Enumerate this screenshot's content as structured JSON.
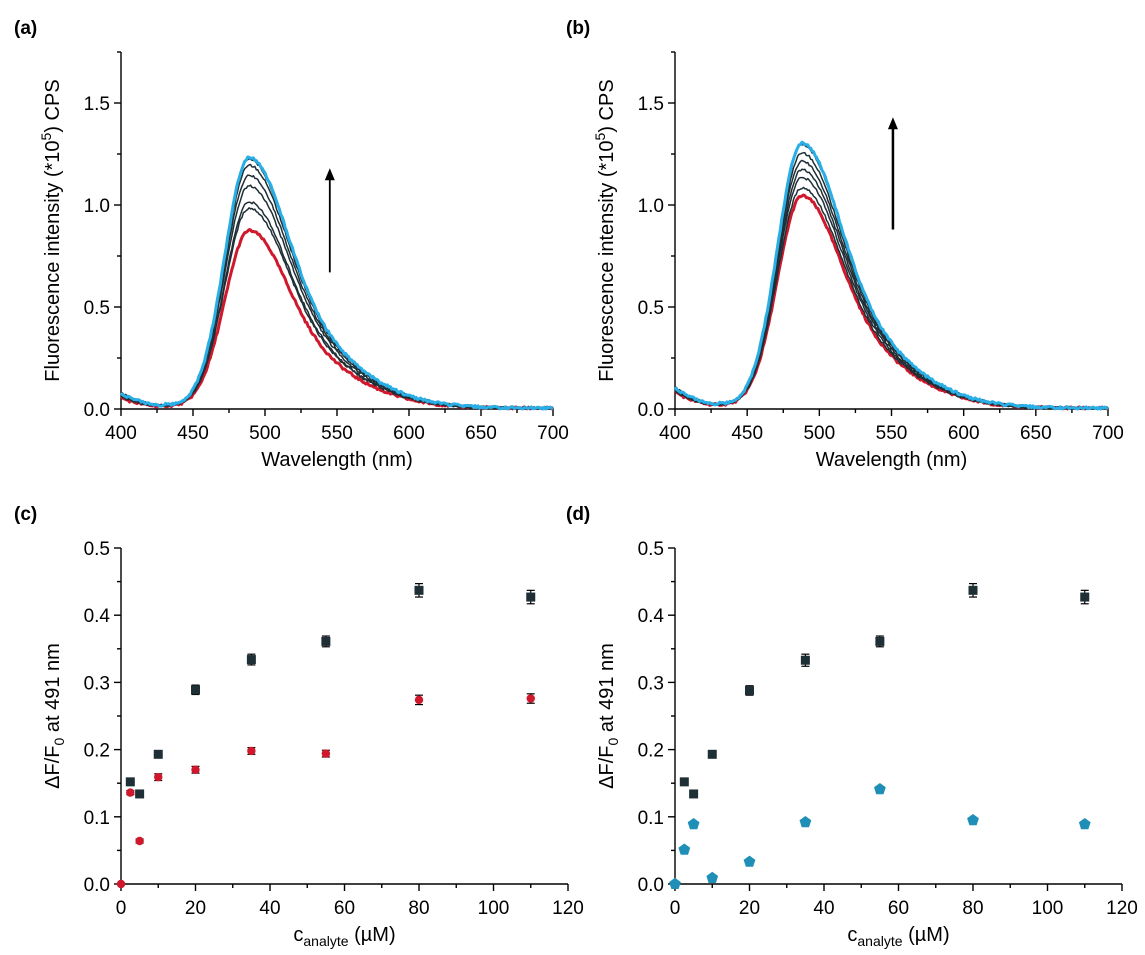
{
  "colors": {
    "red": "#d0182c",
    "blue": "#29aee6",
    "dark": "#1f2f36",
    "pentagon": "#1f8fb8"
  },
  "chart_data": [
    {
      "panel": "(a)",
      "type": "line",
      "xlabel": "Wavelength (nm)",
      "ylabel": {
        "pre": "Fluorescence intensity (*10",
        "sup": "5",
        "post": ") CPS"
      },
      "xlim": [
        400,
        700
      ],
      "ylim": [
        0,
        1.75
      ],
      "xticks": [
        400,
        450,
        500,
        550,
        600,
        650,
        700
      ],
      "yticks": [
        0.0,
        0.5,
        1.0,
        1.5
      ],
      "ytick_labels": [
        "0.0",
        "0.5",
        "1.0",
        "1.5"
      ],
      "peak_nm": 489,
      "baseline_start": 0.07,
      "arrow": {
        "x": 545,
        "y_from": 0.67,
        "y_to": 1.18
      },
      "series": [
        {
          "color": "red",
          "peak": 0.87,
          "width": 3
        },
        {
          "color": "dark",
          "peak": 0.98,
          "width": 1.5
        },
        {
          "color": "dark",
          "peak": 1.01,
          "width": 1.5
        },
        {
          "color": "dark",
          "peak": 1.09,
          "width": 1.5
        },
        {
          "color": "dark",
          "peak": 1.14,
          "width": 1.5
        },
        {
          "color": "dark",
          "peak": 1.19,
          "width": 1.5
        },
        {
          "color": "dark",
          "peak": 1.22,
          "width": 1.5
        },
        {
          "color": "blue",
          "peak": 1.23,
          "width": 3
        }
      ]
    },
    {
      "panel": "(b)",
      "type": "line",
      "xlabel": "Wavelength (nm)",
      "ylabel": {
        "pre": "Fluorescence intensity (*10",
        "sup": "5",
        "post": ") CPS"
      },
      "xlim": [
        400,
        700
      ],
      "ylim": [
        0,
        1.75
      ],
      "xticks": [
        400,
        450,
        500,
        550,
        600,
        650,
        700
      ],
      "yticks": [
        0.0,
        0.5,
        1.0,
        1.5
      ],
      "ytick_labels": [
        "0.0",
        "0.5",
        "1.0",
        "1.5"
      ],
      "peak_nm": 488,
      "baseline_start": 0.09,
      "arrow": {
        "x": 551,
        "y_from": 0.88,
        "y_to": 1.43
      },
      "series": [
        {
          "color": "red",
          "peak": 1.04,
          "width": 3
        },
        {
          "color": "dark",
          "peak": 1.08,
          "width": 1.5
        },
        {
          "color": "dark",
          "peak": 1.13,
          "width": 1.5
        },
        {
          "color": "dark",
          "peak": 1.17,
          "width": 1.5
        },
        {
          "color": "dark",
          "peak": 1.21,
          "width": 1.5
        },
        {
          "color": "dark",
          "peak": 1.25,
          "width": 1.5
        },
        {
          "color": "dark",
          "peak": 1.29,
          "width": 1.5
        },
        {
          "color": "blue",
          "peak": 1.3,
          "width": 3
        }
      ]
    },
    {
      "panel": "(c)",
      "type": "scatter",
      "xlabel": {
        "pre": "c",
        "sub": "analyte",
        "post": " (µM)"
      },
      "ylabel": {
        "pre": "ΔF/F",
        "sub": "0",
        "post": " at 491 nm"
      },
      "xlim": [
        0,
        120
      ],
      "ylim": [
        0,
        0.5
      ],
      "xticks": [
        0,
        20,
        40,
        60,
        80,
        100,
        120
      ],
      "yticks": [
        0.0,
        0.1,
        0.2,
        0.3,
        0.4,
        0.5
      ],
      "ytick_labels": [
        "0.0",
        "0.1",
        "0.2",
        "0.3",
        "0.4",
        "0.5"
      ],
      "series": [
        {
          "color": "dark",
          "marker": "square",
          "x": [
            2.5,
            5,
            10,
            20,
            35,
            55,
            80,
            110
          ],
          "y": [
            0.152,
            0.134,
            0.193,
            0.289,
            0.334,
            0.361,
            0.437,
            0.427
          ],
          "err": [
            0.004,
            0.004,
            0.005,
            0.007,
            0.008,
            0.008,
            0.01,
            0.01
          ]
        },
        {
          "color": "red",
          "marker": "circle",
          "x": [
            0,
            2.5,
            5,
            10,
            20,
            35,
            55,
            80,
            110
          ],
          "y": [
            0.0,
            0.136,
            0.064,
            0.159,
            0.17,
            0.198,
            0.194,
            0.274,
            0.276
          ],
          "err": [
            0.0,
            0.003,
            0.003,
            0.005,
            0.005,
            0.005,
            0.005,
            0.007,
            0.007
          ]
        }
      ]
    },
    {
      "panel": "(d)",
      "type": "scatter",
      "xlabel": {
        "pre": "c",
        "sub": "analyte",
        "post": " (µM)"
      },
      "ylabel": {
        "pre": "ΔF/F",
        "sub": "0",
        "post": " at 491 nm"
      },
      "xlim": [
        0,
        120
      ],
      "ylim": [
        0,
        0.5
      ],
      "xticks": [
        0,
        20,
        40,
        60,
        80,
        100,
        120
      ],
      "yticks": [
        0.0,
        0.1,
        0.2,
        0.3,
        0.4,
        0.5
      ],
      "ytick_labels": [
        "0.0",
        "0.1",
        "0.2",
        "0.3",
        "0.4",
        "0.5"
      ],
      "series": [
        {
          "color": "dark",
          "marker": "square",
          "x": [
            2.5,
            5,
            10,
            20,
            35,
            55,
            80,
            110
          ],
          "y": [
            0.152,
            0.134,
            0.193,
            0.288,
            0.333,
            0.361,
            0.437,
            0.427
          ],
          "err": [
            0.004,
            0.004,
            0.005,
            0.007,
            0.009,
            0.008,
            0.01,
            0.01
          ]
        },
        {
          "color": "pentagon",
          "marker": "pentagon",
          "x": [
            0,
            2.5,
            5,
            10,
            20,
            35,
            55,
            80,
            110
          ],
          "y": [
            0.0,
            0.051,
            0.089,
            0.009,
            0.033,
            0.092,
            0.141,
            0.095,
            0.089
          ],
          "err": [
            0,
            0,
            0,
            0,
            0,
            0,
            0,
            0,
            0
          ]
        }
      ]
    }
  ]
}
